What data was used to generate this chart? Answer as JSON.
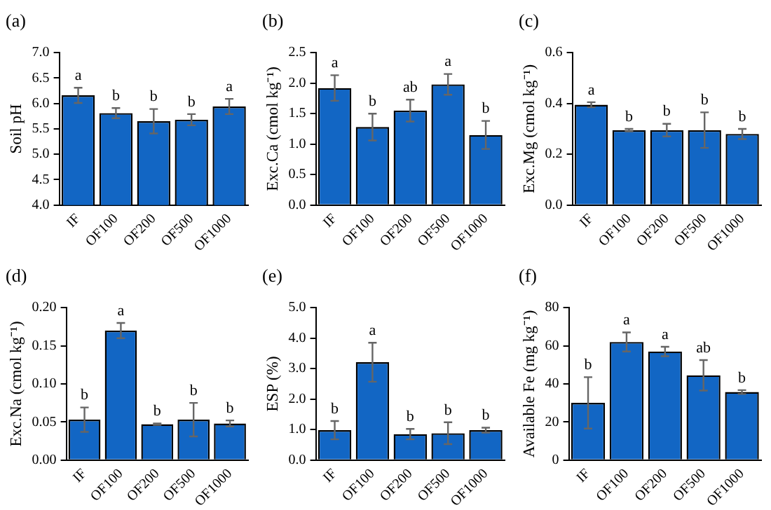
{
  "chart_data": [
    {
      "type": "bar",
      "title": "(a)",
      "ylabel": "Soil pH",
      "categories": [
        "IF",
        "OF100",
        "OF200",
        "OF500",
        "OF1000"
      ],
      "values": [
        6.16,
        5.81,
        5.65,
        5.68,
        5.94
      ],
      "errors": [
        0.15,
        0.1,
        0.24,
        0.11,
        0.15
      ],
      "color": "#1266c4",
      "ylim": [
        4,
        7
      ],
      "yticks": [
        {
          "value": 4,
          "label": "4.0"
        },
        {
          "value": 4.5,
          "label": "4.5"
        },
        {
          "value": 5,
          "label": "5.0"
        },
        {
          "value": 5.5,
          "label": "5.5"
        },
        {
          "value": 6,
          "label": "6.0"
        },
        {
          "value": 6.5,
          "label": "6.5"
        },
        {
          "value": 7,
          "label": "7.0"
        }
      ],
      "grid": false,
      "legend": false,
      "annotations": [
        {
          "text": "a",
          "x": "IF",
          "y": 6.31
        },
        {
          "text": "b",
          "x": "OF100",
          "y": 5.91
        },
        {
          "text": "b",
          "x": "OF200",
          "y": 5.89
        },
        {
          "text": "b",
          "x": "OF500",
          "y": 5.79
        },
        {
          "text": "a",
          "x": "OF1000",
          "y": 6.09
        }
      ]
    },
    {
      "type": "bar",
      "title": "(b)",
      "ylabel": "Exc.Ca (cmol kg⁻¹)",
      "categories": [
        "IF",
        "OF100",
        "OF200",
        "OF500",
        "OF1000"
      ],
      "values": [
        1.92,
        1.28,
        1.55,
        1.98,
        1.15
      ],
      "errors": [
        0.21,
        0.22,
        0.18,
        0.17,
        0.23
      ],
      "color": "#1266c4",
      "ylim": [
        0,
        2.5
      ],
      "yticks": [
        {
          "value": 0,
          "label": "0.0"
        },
        {
          "value": 0.5,
          "label": "0.5"
        },
        {
          "value": 1,
          "label": "1.0"
        },
        {
          "value": 1.5,
          "label": "1.5"
        },
        {
          "value": 2,
          "label": "2.0"
        },
        {
          "value": 2.5,
          "label": "2.5"
        }
      ],
      "grid": false,
      "legend": false,
      "annotations": [
        {
          "text": "a",
          "x": "IF",
          "y": 2.13
        },
        {
          "text": "b",
          "x": "OF100",
          "y": 1.5
        },
        {
          "text": "ab",
          "x": "OF200",
          "y": 1.73
        },
        {
          "text": "a",
          "x": "OF500",
          "y": 2.15
        },
        {
          "text": "b",
          "x": "OF1000",
          "y": 1.38
        }
      ]
    },
    {
      "type": "bar",
      "title": "(c)",
      "ylabel": "Exc.Mg (cmol kg⁻¹)",
      "categories": [
        "IF",
        "OF100",
        "OF200",
        "OF500",
        "OF1000"
      ],
      "values": [
        0.395,
        0.295,
        0.295,
        0.295,
        0.28
      ],
      "errors": [
        0.01,
        0.005,
        0.025,
        0.07,
        0.02
      ],
      "color": "#1266c4",
      "ylim": [
        0,
        0.6
      ],
      "yticks": [
        {
          "value": 0,
          "label": "0.0"
        },
        {
          "value": 0.2,
          "label": "0.2"
        },
        {
          "value": 0.4,
          "label": "0.4"
        },
        {
          "value": 0.6,
          "label": "0.6"
        }
      ],
      "grid": false,
      "legend": false,
      "annotations": [
        {
          "text": "a",
          "x": "IF",
          "y": 0.405
        },
        {
          "text": "b",
          "x": "OF100",
          "y": 0.3
        },
        {
          "text": "b",
          "x": "OF200",
          "y": 0.32
        },
        {
          "text": "b",
          "x": "OF500",
          "y": 0.365
        },
        {
          "text": "b",
          "x": "OF1000",
          "y": 0.3
        }
      ]
    },
    {
      "type": "bar",
      "title": "(d)",
      "ylabel": "Exc.Na (cmol kg⁻¹)",
      "categories": [
        "IF",
        "OF100",
        "OF200",
        "OF500",
        "OF1000"
      ],
      "values": [
        0.053,
        0.17,
        0.047,
        0.053,
        0.048
      ],
      "errors": [
        0.016,
        0.01,
        0.001,
        0.022,
        0.004
      ],
      "color": "#1266c4",
      "ylim": [
        0,
        0.2
      ],
      "yticks": [
        {
          "value": 0,
          "label": "0.00"
        },
        {
          "value": 0.05,
          "label": "0.05"
        },
        {
          "value": 0.1,
          "label": "0.10"
        },
        {
          "value": 0.15,
          "label": "0.15"
        },
        {
          "value": 0.2,
          "label": "0.20"
        }
      ],
      "grid": false,
      "legend": false,
      "annotations": [
        {
          "text": "b",
          "x": "IF",
          "y": 0.069
        },
        {
          "text": "a",
          "x": "OF100",
          "y": 0.18
        },
        {
          "text": "b",
          "x": "OF200",
          "y": 0.048
        },
        {
          "text": "b",
          "x": "OF500",
          "y": 0.075
        },
        {
          "text": "b",
          "x": "OF1000",
          "y": 0.052
        }
      ]
    },
    {
      "type": "bar",
      "title": "(e)",
      "ylabel": "ESP (%)",
      "categories": [
        "IF",
        "OF100",
        "OF200",
        "OF500",
        "OF1000"
      ],
      "values": [
        0.98,
        3.21,
        0.85,
        0.88,
        0.98
      ],
      "errors": [
        0.3,
        0.64,
        0.17,
        0.36,
        0.08
      ],
      "color": "#1266c4",
      "ylim": [
        0,
        5
      ],
      "yticks": [
        {
          "value": 0,
          "label": "0.0"
        },
        {
          "value": 1,
          "label": "1.0"
        },
        {
          "value": 2,
          "label": "2.0"
        },
        {
          "value": 3,
          "label": "3.0"
        },
        {
          "value": 4,
          "label": "4.0"
        },
        {
          "value": 5,
          "label": "5.0"
        }
      ],
      "grid": false,
      "legend": false,
      "annotations": [
        {
          "text": "b",
          "x": "IF",
          "y": 1.28
        },
        {
          "text": "a",
          "x": "OF100",
          "y": 3.85
        },
        {
          "text": "b",
          "x": "OF200",
          "y": 1.02
        },
        {
          "text": "b",
          "x": "OF500",
          "y": 1.24
        },
        {
          "text": "b",
          "x": "OF1000",
          "y": 1.06
        }
      ]
    },
    {
      "type": "bar",
      "title": "(f)",
      "ylabel": "Available Fe (mg kg⁻¹)",
      "categories": [
        "IF",
        "OF100",
        "OF200",
        "OF500",
        "OF1000"
      ],
      "values": [
        30,
        62,
        57,
        44.5,
        35.7
      ],
      "errors": [
        13.5,
        5,
        2.5,
        8,
        1
      ],
      "color": "#1266c4",
      "ylim": [
        0,
        80
      ],
      "yticks": [
        0,
        20,
        40,
        60,
        80
      ],
      "grid": false,
      "legend": false,
      "annotations": [
        {
          "text": "b",
          "x": "IF",
          "y": 43.5
        },
        {
          "text": "a",
          "x": "OF100",
          "y": 67
        },
        {
          "text": "a",
          "x": "OF200",
          "y": 59.5
        },
        {
          "text": "ab",
          "x": "OF500",
          "y": 52.5
        },
        {
          "text": "b",
          "x": "OF1000",
          "y": 36.7
        }
      ]
    }
  ]
}
